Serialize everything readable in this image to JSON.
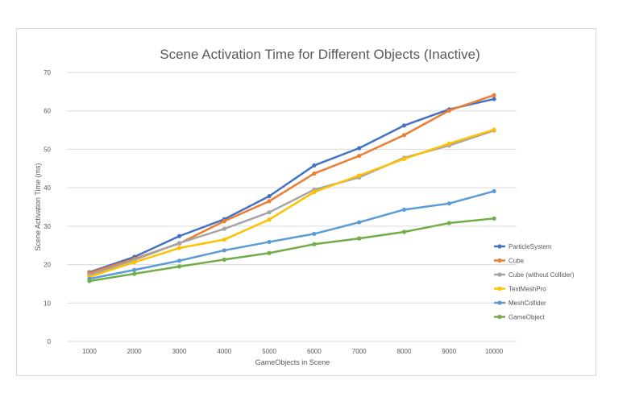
{
  "chart_data": {
    "type": "line",
    "title": "Scene Activation Time for Different Objects (Inactive)",
    "xlabel": "GameObjects in Scene",
    "ylabel": "Scene Activation Time (ms)",
    "categories": [
      "1000",
      "2000",
      "3000",
      "4000",
      "5000",
      "6000",
      "7000",
      "8000",
      "9000",
      "10000"
    ],
    "ylim": [
      0,
      70
    ],
    "yticks": [
      0,
      10,
      20,
      30,
      40,
      50,
      60,
      70
    ],
    "grid": true,
    "legend_position": "right",
    "series": [
      {
        "name": "ParticleSystem",
        "color": "#4472c4",
        "values": [
          18.0,
          22.0,
          27.4,
          31.8,
          37.8,
          45.8,
          50.3,
          56.2,
          60.4,
          63.1
        ]
      },
      {
        "name": "Cube",
        "color": "#ed7d31",
        "values": [
          17.8,
          21.5,
          25.5,
          31.3,
          36.5,
          43.7,
          48.3,
          53.7,
          60.1,
          64.1
        ]
      },
      {
        "name": "Cube (without Collider)",
        "color": "#a5a5a5",
        "values": [
          17.3,
          21.2,
          25.6,
          29.3,
          33.6,
          39.5,
          42.7,
          47.8,
          51.0,
          54.9
        ]
      },
      {
        "name": "TextMeshPro",
        "color": "#ffc000",
        "values": [
          16.8,
          20.6,
          24.3,
          26.5,
          31.7,
          38.9,
          43.2,
          47.5,
          51.5,
          55.1
        ]
      },
      {
        "name": "MeshCollider",
        "color": "#5b9bd5",
        "values": [
          16.3,
          18.6,
          21.0,
          23.7,
          25.9,
          28.0,
          31.0,
          34.3,
          35.9,
          39.1
        ]
      },
      {
        "name": "GameObject",
        "color": "#70ad47",
        "values": [
          15.7,
          17.6,
          19.5,
          21.3,
          23.0,
          25.3,
          26.8,
          28.5,
          30.8,
          32.0
        ]
      }
    ]
  }
}
